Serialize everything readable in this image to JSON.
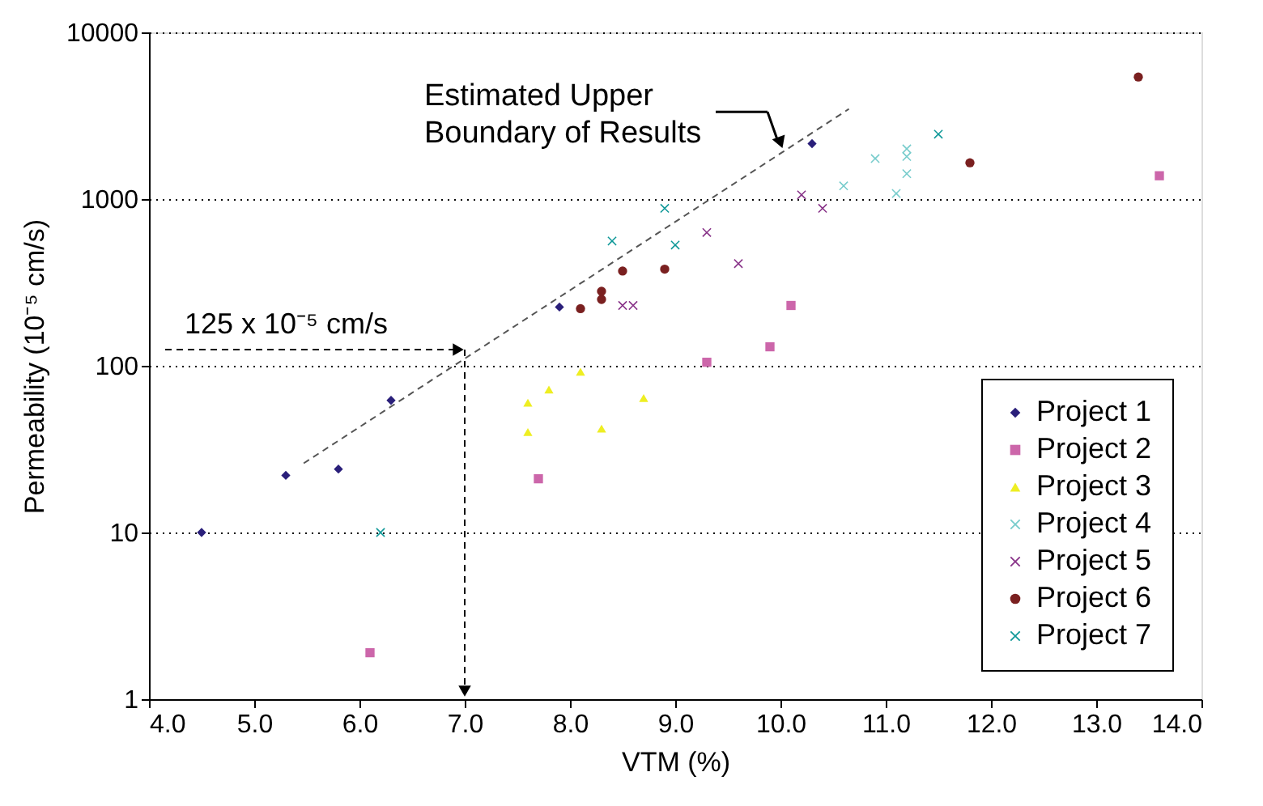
{
  "chart_data": {
    "type": "scatter",
    "xlabel": "VTM (%)",
    "ylabel": "Permeability (10⁻⁵ cm/s)",
    "xlim": [
      4,
      14
    ],
    "xticks": [
      {
        "value": 4,
        "label": "4.0"
      },
      {
        "value": 5,
        "label": "5.0"
      },
      {
        "value": 6,
        "label": "6.0"
      },
      {
        "value": 7,
        "label": "7.0"
      },
      {
        "value": 8,
        "label": "8.0"
      },
      {
        "value": 9,
        "label": "9.0"
      },
      {
        "value": 10,
        "label": "10.0"
      },
      {
        "value": 11,
        "label": "11.0"
      },
      {
        "value": 12,
        "label": "12.0"
      },
      {
        "value": 13,
        "label": "13.0"
      },
      {
        "value": 14,
        "label": "14.0"
      }
    ],
    "ylim": [
      1,
      10000
    ],
    "yticks": [
      1,
      10,
      100,
      1000,
      10000
    ],
    "log": "y",
    "grid": "y",
    "legend": "bottom right",
    "series": [
      {
        "name": "Project 1",
        "color": "#2a1f7a",
        "marker": "diamond",
        "x": [
          4.5,
          5.3,
          5.8,
          6.3,
          7.9,
          10.3
        ],
        "values": [
          10,
          22,
          24,
          62,
          225,
          2150
        ]
      },
      {
        "name": "Project 2",
        "color": "#cc66aa",
        "marker": "square",
        "x": [
          6.1,
          7.7,
          9.3,
          9.9,
          10.1,
          13.6
        ],
        "values": [
          1.9,
          21,
          105,
          130,
          230,
          1380
        ]
      },
      {
        "name": "Project 3",
        "color": "#eeee22",
        "marker": "triangle",
        "x": [
          7.6,
          7.6,
          7.8,
          8.1,
          8.3,
          8.7
        ],
        "values": [
          60,
          40,
          72,
          92,
          42,
          64
        ]
      },
      {
        "name": "Project 4",
        "color": "#77cccc",
        "marker": "cross",
        "x": [
          10.6,
          10.9,
          11.1,
          11.2,
          11.2,
          11.2
        ],
        "values": [
          1200,
          1750,
          1080,
          2000,
          1800,
          1420
        ]
      },
      {
        "name": "Project 5",
        "color": "#883388",
        "marker": "cross",
        "x": [
          8.5,
          8.6,
          9.3,
          9.6,
          10.2,
          10.4
        ],
        "values": [
          230,
          230,
          630,
          410,
          1060,
          880
        ]
      },
      {
        "name": "Project 6",
        "color": "#7a2020",
        "marker": "circle",
        "x": [
          8.1,
          8.3,
          8.3,
          8.5,
          8.9,
          11.8,
          13.4
        ],
        "values": [
          220,
          250,
          280,
          370,
          380,
          1650,
          5400
        ]
      },
      {
        "name": "Project 7",
        "color": "#119999",
        "marker": "cross",
        "x": [
          6.2,
          8.4,
          8.9,
          9.0,
          11.5
        ],
        "values": [
          10,
          560,
          880,
          530,
          2450
        ]
      },
      {
        "type": "line",
        "color": "#555555",
        "line_style": "dashed",
        "marker": "none",
        "x": [
          5.47,
          10.65
        ],
        "values": [
          26,
          3470
        ]
      }
    ],
    "annotations": [
      {
        "text": "Estimated Upper Boundary of Results",
        "x": 10.0,
        "y": 1950
      },
      {
        "text": "125 x 10⁻⁵ cm/s",
        "x": 7,
        "y": 125
      }
    ]
  }
}
